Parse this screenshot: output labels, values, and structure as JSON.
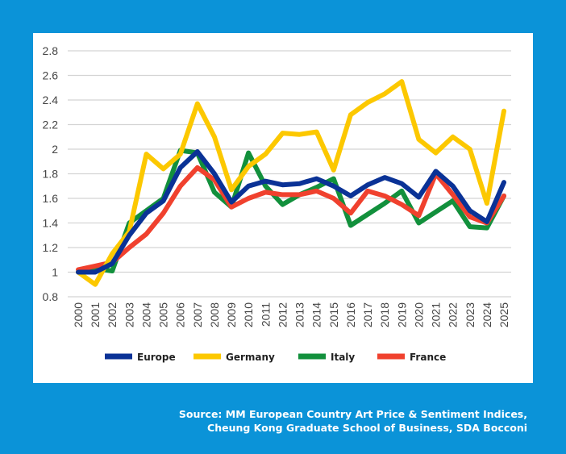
{
  "chart_data": {
    "type": "line",
    "title": "",
    "xlabel": "",
    "ylabel": "",
    "ylim": [
      0.8,
      2.8
    ],
    "yticks": [
      "0.8",
      "1",
      "1.2",
      "1.4",
      "1.6",
      "1.8",
      "2",
      "2.2",
      "2.4",
      "2.6",
      "2.8"
    ],
    "grid": true,
    "legend": "bottom",
    "x": [
      "2000",
      "2001",
      "2002",
      "2003",
      "2004",
      "2005",
      "2006",
      "2007",
      "2008",
      "2009",
      "2010",
      "2011",
      "2012",
      "2013",
      "2014",
      "2015",
      "2016",
      "2017",
      "2018",
      "2019",
      "2020",
      "2021",
      "2022",
      "2023",
      "2024",
      "2025"
    ],
    "series": [
      {
        "name": "Europe",
        "color": "#0a3296",
        "values": [
          1.0,
          1.0,
          1.07,
          1.3,
          1.48,
          1.58,
          1.85,
          1.98,
          1.8,
          1.57,
          1.7,
          1.74,
          1.71,
          1.72,
          1.76,
          1.7,
          1.62,
          1.71,
          1.77,
          1.72,
          1.61,
          1.82,
          1.7,
          1.5,
          1.41,
          1.73
        ]
      },
      {
        "name": "Germany",
        "color": "#fcc800",
        "values": [
          1.0,
          0.9,
          1.15,
          1.33,
          1.96,
          1.84,
          1.96,
          2.37,
          2.1,
          1.67,
          1.86,
          1.96,
          2.13,
          2.12,
          2.14,
          1.83,
          2.28,
          2.38,
          2.45,
          2.55,
          2.08,
          1.97,
          2.1,
          2.0,
          1.56,
          2.31
        ]
      },
      {
        "name": "Italy",
        "color": "#12903c",
        "values": [
          1.0,
          1.03,
          1.01,
          1.4,
          1.5,
          1.6,
          1.99,
          1.97,
          1.65,
          1.53,
          1.97,
          1.7,
          1.55,
          1.63,
          1.69,
          1.76,
          1.38,
          1.47,
          1.56,
          1.66,
          1.4,
          1.49,
          1.58,
          1.37,
          1.36,
          1.62
        ]
      },
      {
        "name": "France",
        "color": "#f0412e",
        "values": [
          1.02,
          1.05,
          1.08,
          1.2,
          1.31,
          1.48,
          1.7,
          1.85,
          1.75,
          1.53,
          1.6,
          1.65,
          1.63,
          1.63,
          1.66,
          1.6,
          1.48,
          1.66,
          1.62,
          1.55,
          1.46,
          1.8,
          1.63,
          1.45,
          1.4,
          1.62
        ]
      }
    ]
  },
  "source": {
    "line1": "Source: MM European Country Art Price & Sentiment Indices,",
    "line2": "Cheung Kong Graduate School of Business, SDA Bocconi"
  },
  "colors": {
    "background": "#0b93d8",
    "panel": "#ffffff",
    "grid": "#d4d4d4"
  }
}
